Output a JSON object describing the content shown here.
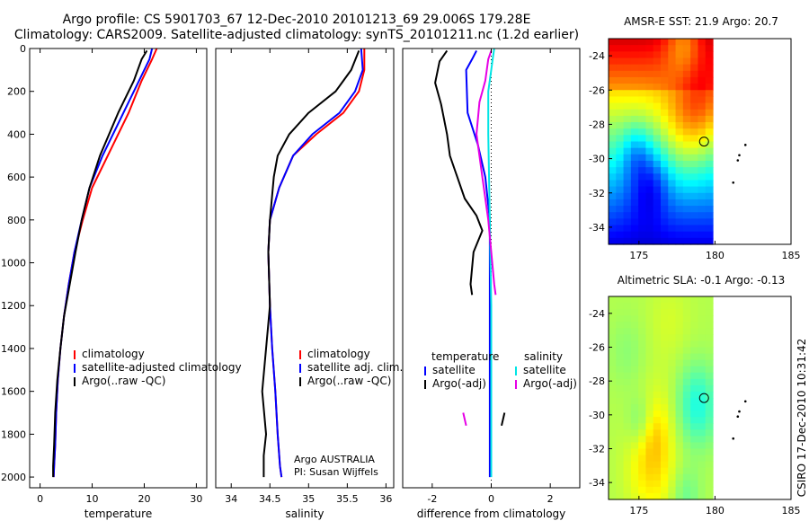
{
  "header": {
    "line1": "Argo profile: CS 5901703_67 12-Dec-2010 20101213_69 29.006S 179.28E",
    "line2": "Climatology: CARS2009. Satellite-adjusted climatology: synTS_20101211.nc (1.2d earlier)"
  },
  "credit": {
    "line1": "Argo AUSTRALIA",
    "line2": "PI: Susan Wijffels"
  },
  "stamp": "CSIRO 17-Dec-2010 10:31:42",
  "colors": {
    "climatology": "#ff0000",
    "satellite": "#0000ff",
    "argo": "#000000",
    "sat_diff_s": "#00e5e5",
    "argo_diff_s": "#e600e6"
  },
  "chart_data": [
    {
      "type": "line",
      "id": "temperature",
      "xlabel": "temperature",
      "ylabel": "",
      "xlim": [
        -2,
        32
      ],
      "ylim": [
        2050,
        0
      ],
      "y_inverted": true,
      "xticks": [
        0,
        10,
        20,
        30
      ],
      "yticks": [
        0,
        200,
        400,
        600,
        800,
        1000,
        1200,
        1400,
        1600,
        1800,
        2000
      ],
      "legend": {
        "entries": [
          "climatology",
          "satellite-adjusted climatology",
          "Argo(..raw -QC)"
        ]
      },
      "series": [
        {
          "name": "climatology",
          "color": "#ff0000",
          "x": [
            22.4,
            21.5,
            19.5,
            17.0,
            13.0,
            10.0,
            8.2,
            6.6,
            5.5,
            4.6,
            3.9,
            3.4,
            3.1,
            2.9,
            2.7,
            2.6
          ],
          "y": [
            0,
            50,
            150,
            300,
            500,
            650,
            800,
            950,
            1100,
            1250,
            1400,
            1550,
            1700,
            1850,
            1950,
            2000
          ]
        },
        {
          "name": "satellite-adjusted climatology",
          "color": "#0000ff",
          "x": [
            21.5,
            21.0,
            19.0,
            16.0,
            12.0,
            9.5,
            8.0,
            6.6,
            5.5,
            4.6,
            3.9,
            3.4,
            3.1,
            2.9,
            2.7,
            2.6
          ],
          "y": [
            0,
            50,
            150,
            300,
            500,
            650,
            800,
            950,
            1100,
            1250,
            1400,
            1550,
            1700,
            1850,
            1950,
            2000
          ]
        },
        {
          "name": "Argo(..raw -QC)",
          "color": "#000000",
          "x": [
            20.5,
            19.5,
            18.0,
            15.0,
            11.5,
            9.5,
            8.0,
            6.8,
            5.7,
            4.6,
            3.9,
            3.3,
            2.9,
            2.7,
            2.5,
            2.5
          ],
          "y": [
            10,
            50,
            150,
            300,
            500,
            650,
            800,
            950,
            1100,
            1250,
            1400,
            1550,
            1700,
            1850,
            1950,
            2000
          ]
        }
      ]
    },
    {
      "type": "line",
      "id": "salinity",
      "xlabel": "salinity",
      "ylabel": "",
      "xlim": [
        33.8,
        36.1
      ],
      "ylim": [
        2050,
        0
      ],
      "y_inverted": true,
      "xticks": [
        34,
        34.5,
        35,
        35.5,
        36
      ],
      "yticks": [],
      "legend": {
        "entries": [
          "climatology",
          "satellite adj. clim.",
          "Argo(..raw -QC)"
        ]
      },
      "series": [
        {
          "name": "climatology",
          "color": "#ff0000",
          "x": [
            35.72,
            35.72,
            35.65,
            35.45,
            35.1,
            34.8,
            34.62,
            34.5,
            34.48,
            34.5,
            34.53,
            34.57,
            34.6,
            34.63,
            34.65
          ],
          "y": [
            0,
            100,
            200,
            300,
            400,
            500,
            650,
            800,
            950,
            1200,
            1400,
            1600,
            1800,
            1950,
            2000
          ]
        },
        {
          "name": "satellite adj. clim.",
          "color": "#0000ff",
          "x": [
            35.68,
            35.7,
            35.6,
            35.4,
            35.05,
            34.8,
            34.62,
            34.5,
            34.48,
            34.5,
            34.53,
            34.57,
            34.6,
            34.63,
            34.65
          ],
          "y": [
            0,
            100,
            200,
            300,
            400,
            500,
            650,
            800,
            950,
            1200,
            1400,
            1600,
            1800,
            1950,
            2000
          ]
        },
        {
          "name": "Argo(..raw -QC)",
          "color": "#000000",
          "x": [
            35.65,
            35.55,
            35.35,
            35.0,
            34.75,
            34.6,
            34.55,
            34.5,
            34.48,
            34.5,
            34.45,
            34.4,
            34.45,
            34.42,
            34.42,
            34.42
          ],
          "y": [
            10,
            100,
            200,
            300,
            400,
            500,
            600,
            800,
            950,
            1200,
            1400,
            1600,
            1800,
            1900,
            1950,
            2000
          ]
        }
      ]
    },
    {
      "type": "line",
      "id": "difference",
      "xlabel": "difference from climatology",
      "ylabel": "",
      "xlim": [
        -3,
        3
      ],
      "ylim": [
        2050,
        0
      ],
      "y_inverted": true,
      "xticks": [
        -2,
        0,
        2
      ],
      "yticks": [],
      "zero_line": 0,
      "legend": {
        "col1_title": "temperature",
        "col2_title": "salinity",
        "col1": [
          "satellite",
          "Argo(-adj)"
        ],
        "col2": [
          "satellite",
          "Argo(-adj)"
        ]
      },
      "series": [
        {
          "name": "temperature satellite",
          "color": "#0000ff",
          "x": [
            -0.5,
            -0.65,
            -0.85,
            -0.8,
            -0.45,
            -0.2,
            -0.05,
            -0.05,
            -0.05
          ],
          "y": [
            10,
            50,
            100,
            300,
            450,
            600,
            800,
            1200,
            2000
          ]
        },
        {
          "name": "temperature Argo(-adj)",
          "color": "#000000",
          "x": [
            -1.5,
            -1.75,
            -1.9,
            -1.7,
            -1.5,
            -1.4,
            -0.9,
            -0.5,
            -0.3,
            -0.6,
            -0.7,
            -0.65
          ],
          "y": [
            10,
            60,
            160,
            260,
            400,
            500,
            700,
            780,
            850,
            950,
            1100,
            1150
          ]
        },
        {
          "name": "salinity satellite",
          "color": "#00e5e5",
          "x": [
            0.1,
            0.05,
            0,
            -0.1,
            -0.1,
            -0.05,
            0,
            0
          ],
          "y": [
            0,
            50,
            100,
            200,
            400,
            800,
            1200,
            2000
          ]
        },
        {
          "name": "salinity Argo(-adj)",
          "color": "#e600e6",
          "x": [
            0,
            -0.1,
            -0.2,
            -0.4,
            -0.5,
            -0.3,
            -0.1,
            0,
            0.1,
            0.15
          ],
          "y": [
            10,
            50,
            150,
            250,
            400,
            600,
            800,
            950,
            1100,
            1150
          ]
        },
        {
          "name": "salinity Argo(-adj) deep",
          "color": "#e600e6",
          "x": [
            -0.95,
            -0.85
          ],
          "y": [
            1700,
            1760
          ]
        },
        {
          "name": "temperature Argo(-adj) deep",
          "color": "#000000",
          "x": [
            0.45,
            0.35
          ],
          "y": [
            1700,
            1760
          ]
        }
      ]
    },
    {
      "type": "heatmap",
      "id": "sst_map",
      "title": "AMSR-E SST: 21.9 Argo: 20.7",
      "xlim": [
        173,
        185
      ],
      "ylim": [
        -35,
        -23
      ],
      "xticks": [
        175,
        180,
        185
      ],
      "yticks": [
        -24,
        -26,
        -28,
        -30,
        -32,
        -34
      ],
      "float_position": {
        "lon": 179.28,
        "lat": -29.006
      }
    },
    {
      "type": "heatmap",
      "id": "sla_map",
      "title": "Altimetric SLA: -0.1 Argo: -0.13",
      "xlim": [
        173,
        185
      ],
      "ylim": [
        -35,
        -23
      ],
      "xticks": [
        175,
        180,
        185
      ],
      "yticks": [
        -24,
        -26,
        -28,
        -30,
        -32,
        -34
      ],
      "float_position": {
        "lon": 179.28,
        "lat": -29.006
      }
    }
  ]
}
